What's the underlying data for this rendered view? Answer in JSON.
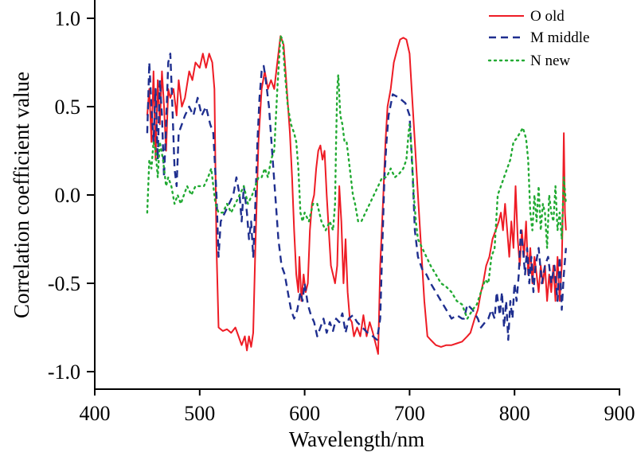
{
  "chart_data": {
    "type": "line",
    "title": "",
    "xlabel": "Wavelength/nm",
    "ylabel": "Correlation coefficient value",
    "xlim": [
      400,
      900
    ],
    "ylim": [
      -1.1,
      1.1
    ],
    "xticks": [
      400,
      500,
      600,
      700,
      800,
      900
    ],
    "xtick_labels": [
      "400",
      "500",
      "600",
      "700",
      "800",
      "900"
    ],
    "yticks": [
      1.0,
      0.5,
      0.0,
      -0.5,
      -1.0
    ],
    "ytick_labels": [
      "1.0",
      "0.5",
      "0.0",
      "-0.5",
      "-1.0"
    ],
    "grid": false,
    "legend_position": "top-right",
    "series": [
      {
        "name": "O old",
        "color": "#ee1c25",
        "style": "solid",
        "x": [
          450,
          452,
          454,
          456,
          458,
          460,
          462,
          464,
          466,
          468,
          470,
          472,
          475,
          478,
          480,
          483,
          486,
          490,
          493,
          496,
          500,
          503,
          506,
          509,
          512,
          514,
          516,
          518,
          522,
          526,
          530,
          534,
          537,
          540,
          543,
          545,
          547,
          549,
          551,
          553,
          556,
          559,
          562,
          565,
          568,
          571,
          574,
          577,
          580,
          583,
          586,
          588,
          590,
          592,
          594,
          595,
          597,
          599,
          601,
          603,
          605,
          607,
          609,
          611,
          613,
          615,
          617,
          619,
          621,
          623,
          625,
          627,
          629,
          631,
          633,
          635,
          637,
          639,
          641,
          643,
          645,
          647,
          650,
          653,
          656,
          659,
          662,
          665,
          668,
          670,
          672,
          675,
          677,
          679,
          682,
          685,
          688,
          691,
          694,
          697,
          700,
          702,
          705,
          708,
          711,
          714,
          717,
          720,
          725,
          730,
          735,
          740,
          745,
          750,
          755,
          758,
          762,
          765,
          768,
          770,
          773,
          776,
          779,
          782,
          785,
          787,
          789,
          791,
          793,
          795,
          797,
          799,
          801,
          803,
          805,
          807,
          809,
          811,
          813,
          815,
          817,
          819,
          821,
          823,
          825,
          827,
          829,
          831,
          833,
          835,
          837,
          839,
          841,
          843,
          845,
          846,
          847,
          848,
          849
        ],
        "y": [
          0.45,
          0.6,
          0.3,
          0.7,
          0.2,
          0.65,
          0.4,
          0.7,
          0.5,
          0.25,
          0.6,
          0.55,
          0.6,
          0.45,
          0.65,
          0.5,
          0.55,
          0.7,
          0.65,
          0.75,
          0.72,
          0.8,
          0.72,
          0.8,
          0.75,
          0.6,
          -0.3,
          -0.75,
          -0.77,
          -0.76,
          -0.78,
          -0.75,
          -0.8,
          -0.85,
          -0.8,
          -0.88,
          -0.8,
          -0.86,
          -0.78,
          -0.3,
          0.3,
          0.6,
          0.7,
          0.6,
          0.65,
          0.6,
          0.75,
          0.9,
          0.85,
          0.6,
          0.35,
          0.1,
          -0.2,
          -0.45,
          -0.55,
          -0.35,
          -0.6,
          -0.45,
          -0.55,
          -0.5,
          -0.2,
          -0.05,
          0.0,
          0.15,
          0.25,
          0.28,
          0.2,
          0.25,
          0.0,
          -0.2,
          -0.4,
          -0.45,
          -0.5,
          -0.4,
          0.05,
          -0.15,
          -0.5,
          -0.25,
          -0.55,
          -0.7,
          -0.72,
          -0.8,
          -0.75,
          -0.8,
          -0.68,
          -0.8,
          -0.72,
          -0.78,
          -0.85,
          -0.9,
          -0.4,
          0.0,
          0.3,
          0.5,
          0.6,
          0.75,
          0.82,
          0.88,
          0.89,
          0.88,
          0.8,
          0.6,
          0.3,
          0.0,
          -0.3,
          -0.6,
          -0.8,
          -0.82,
          -0.85,
          -0.86,
          -0.85,
          -0.85,
          -0.84,
          -0.83,
          -0.8,
          -0.78,
          -0.7,
          -0.65,
          -0.55,
          -0.5,
          -0.4,
          -0.35,
          -0.25,
          -0.2,
          -0.15,
          -0.1,
          -0.2,
          -0.05,
          -0.2,
          -0.35,
          -0.15,
          -0.3,
          0.05,
          -0.25,
          -0.4,
          -0.2,
          -0.35,
          -0.15,
          -0.45,
          -0.3,
          -0.5,
          -0.35,
          -0.45,
          -0.55,
          -0.4,
          -0.5,
          -0.4,
          -0.6,
          -0.45,
          -0.55,
          -0.4,
          -0.6,
          -0.35,
          -0.6,
          -0.4,
          -0.1,
          0.35,
          -0.1,
          -0.2
        ]
      },
      {
        "name": "M middle",
        "color": "#1f2f8f",
        "style": "dashed",
        "x": [
          450,
          452,
          454,
          456,
          458,
          460,
          462,
          464,
          466,
          468,
          470,
          472,
          474,
          476,
          478,
          480,
          483,
          486,
          490,
          494,
          498,
          502,
          506,
          510,
          513,
          516,
          518,
          520,
          524,
          528,
          532,
          535,
          538,
          540,
          542,
          545,
          547,
          549,
          551,
          553,
          555,
          557,
          559,
          561,
          563,
          566,
          569,
          572,
          575,
          578,
          581,
          584,
          587,
          590,
          593,
          596,
          598,
          600,
          603,
          606,
          609,
          612,
          615,
          618,
          621,
          624,
          627,
          630,
          633,
          636,
          639,
          642,
          646,
          650,
          655,
          660,
          665,
          669,
          672,
          674,
          676,
          678,
          680,
          684,
          690,
          696,
          700,
          703,
          705,
          708,
          712,
          716,
          720,
          725,
          730,
          735,
          740,
          745,
          750,
          752,
          755,
          760,
          765,
          768,
          772,
          775,
          778,
          781,
          783,
          786,
          788,
          790,
          792,
          794,
          796,
          798,
          800,
          802,
          804,
          806,
          808,
          810,
          812,
          814,
          816,
          818,
          820,
          823,
          826,
          829,
          832,
          835,
          838,
          841,
          843,
          845,
          847,
          849
        ],
        "y": [
          0.35,
          0.75,
          0.5,
          0.3,
          0.6,
          0.2,
          0.65,
          0.45,
          0.1,
          0.4,
          0.75,
          0.8,
          0.5,
          0.15,
          0.05,
          0.35,
          0.4,
          0.45,
          0.5,
          0.45,
          0.55,
          0.45,
          0.5,
          0.4,
          0.35,
          0.0,
          -0.35,
          -0.15,
          -0.1,
          -0.05,
          0.0,
          0.1,
          0.0,
          -0.15,
          0.05,
          -0.1,
          -0.25,
          -0.15,
          -0.35,
          -0.05,
          0.3,
          0.55,
          0.7,
          0.73,
          0.65,
          0.5,
          0.25,
          0.0,
          -0.25,
          -0.4,
          -0.45,
          -0.55,
          -0.65,
          -0.7,
          -0.65,
          -0.55,
          -0.6,
          -0.5,
          -0.62,
          -0.68,
          -0.72,
          -0.8,
          -0.75,
          -0.7,
          -0.78,
          -0.72,
          -0.77,
          -0.7,
          -0.72,
          -0.67,
          -0.78,
          -0.7,
          -0.68,
          -0.72,
          -0.75,
          -0.78,
          -0.8,
          -0.82,
          -0.7,
          -0.3,
          0.1,
          0.3,
          0.45,
          0.57,
          0.55,
          0.52,
          0.45,
          0.1,
          -0.2,
          -0.35,
          -0.42,
          -0.45,
          -0.5,
          -0.55,
          -0.6,
          -0.65,
          -0.7,
          -0.68,
          -0.7,
          -0.7,
          -0.62,
          -0.65,
          -0.7,
          -0.75,
          -0.72,
          -0.7,
          -0.65,
          -0.7,
          -0.55,
          -0.68,
          -0.55,
          -0.75,
          -0.6,
          -0.82,
          -0.6,
          -0.7,
          -0.5,
          -0.6,
          -0.45,
          -0.2,
          -0.3,
          -0.45,
          -0.3,
          -0.5,
          -0.35,
          -0.55,
          -0.4,
          -0.3,
          -0.5,
          -0.4,
          -0.35,
          -0.5,
          -0.4,
          -0.6,
          -0.35,
          -0.65,
          -0.45,
          -0.3
        ]
      },
      {
        "name": "N new",
        "color": "#22aa33",
        "style": "dotted",
        "x": [
          450,
          452,
          454,
          456,
          458,
          460,
          462,
          465,
          468,
          470,
          473,
          476,
          479,
          482,
          485,
          488,
          492,
          496,
          500,
          504,
          508,
          511,
          513,
          515,
          518,
          522,
          526,
          530,
          534,
          538,
          542,
          546,
          550,
          553,
          556,
          559,
          562,
          565,
          568,
          571,
          574,
          577,
          579,
          581,
          584,
          587,
          590,
          592,
          594,
          596,
          598,
          600,
          604,
          608,
          612,
          616,
          620,
          624,
          627,
          629,
          630,
          631,
          632,
          634,
          636,
          638,
          640,
          642,
          644,
          646,
          648,
          651,
          654,
          658,
          662,
          666,
          670,
          674,
          678,
          682,
          686,
          690,
          694,
          697,
          699,
          700,
          702,
          704,
          706,
          708,
          712,
          716,
          720,
          725,
          730,
          735,
          740,
          745,
          750,
          755,
          760,
          764,
          768,
          772,
          775,
          778,
          781,
          784,
          787,
          790,
          793,
          796,
          799,
          802,
          805,
          808,
          811,
          813,
          815,
          817,
          819,
          821,
          823,
          825,
          827,
          829,
          831,
          833,
          835,
          837,
          839,
          841,
          843,
          845,
          847,
          849
        ],
        "y": [
          -0.1,
          0.2,
          0.15,
          0.3,
          0.25,
          0.1,
          0.3,
          0.2,
          0.05,
          0.1,
          0.05,
          -0.05,
          0.0,
          -0.05,
          0.0,
          0.05,
          0.0,
          0.05,
          0.05,
          0.05,
          0.1,
          0.15,
          0.05,
          -0.05,
          -0.1,
          -0.1,
          -0.05,
          -0.1,
          -0.05,
          0.0,
          0.05,
          -0.05,
          0.0,
          0.05,
          0.1,
          0.1,
          0.15,
          0.1,
          0.2,
          0.25,
          0.6,
          0.9,
          0.88,
          0.7,
          0.5,
          0.4,
          0.35,
          0.3,
          0.15,
          -0.1,
          -0.15,
          -0.1,
          -0.15,
          -0.05,
          -0.05,
          -0.15,
          -0.2,
          -0.15,
          -0.2,
          -0.05,
          0.3,
          0.6,
          0.68,
          0.45,
          0.4,
          0.3,
          0.3,
          0.2,
          0.1,
          0.0,
          -0.05,
          -0.15,
          -0.15,
          -0.1,
          -0.05,
          0.0,
          0.05,
          0.1,
          0.1,
          0.15,
          0.1,
          0.12,
          0.15,
          0.2,
          0.35,
          0.4,
          0.25,
          0.0,
          -0.15,
          -0.25,
          -0.3,
          -0.35,
          -0.4,
          -0.45,
          -0.5,
          -0.52,
          -0.55,
          -0.6,
          -0.62,
          -0.7,
          -0.65,
          -0.62,
          -0.55,
          -0.48,
          -0.5,
          -0.35,
          -0.3,
          0.0,
          0.05,
          0.1,
          0.15,
          0.2,
          0.3,
          0.32,
          0.35,
          0.38,
          0.32,
          0.2,
          -0.1,
          -0.2,
          0.0,
          -0.15,
          0.05,
          -0.2,
          -0.05,
          -0.1,
          -0.3,
          0.0,
          -0.1,
          -0.15,
          0.05,
          -0.2,
          -0.1,
          -0.25,
          0.1,
          -0.05
        ]
      }
    ]
  }
}
